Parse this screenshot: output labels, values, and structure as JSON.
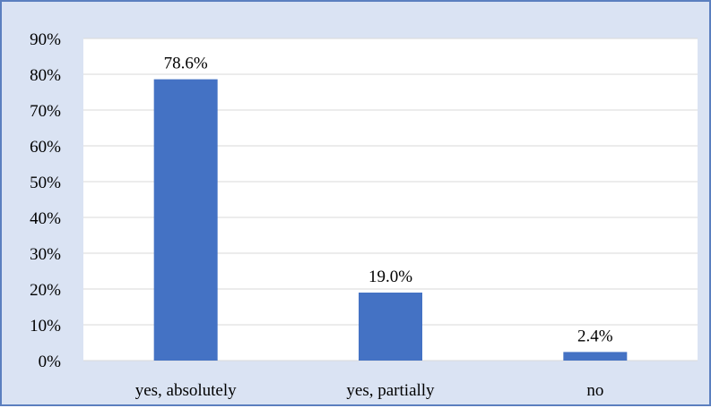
{
  "chart_data": {
    "type": "bar",
    "categories": [
      "yes, absolutely",
      "yes, partially",
      "no"
    ],
    "values": [
      78.6,
      19.0,
      2.4
    ],
    "data_labels": [
      "78.6%",
      "19.0%",
      "2.4%"
    ],
    "ylim": [
      0,
      90
    ],
    "yticks": [
      0,
      10,
      20,
      30,
      40,
      50,
      60,
      70,
      80,
      90
    ],
    "ytick_labels": [
      "0%",
      "10%",
      "20%",
      "30%",
      "40%",
      "50%",
      "60%",
      "70%",
      "80%",
      "90%"
    ],
    "title": "",
    "xlabel": "",
    "ylabel": "",
    "grid": true,
    "legend": "none",
    "colors": {
      "bar": "#4472c4",
      "chart_background": "#dae3f3",
      "plot_background": "#ffffff",
      "border": "#5b7fbf",
      "gridline": "#d9d9d9"
    }
  }
}
